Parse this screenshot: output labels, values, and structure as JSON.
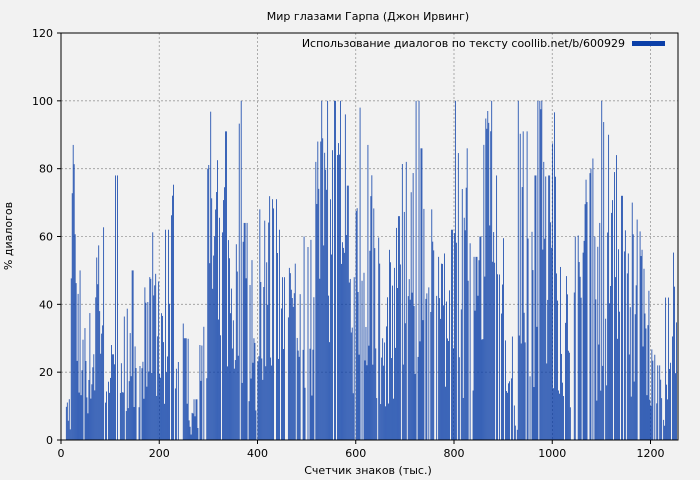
{
  "chart_data": {
    "type": "bar",
    "title": "Мир глазами Гарпа (Джон Ирвинг)",
    "xlabel": "Счетчик знаков (тыс.)",
    "ylabel": "% диалогов",
    "xlim": [
      0,
      1256
    ],
    "ylim": [
      0,
      120
    ],
    "x_ticks": [
      0,
      200,
      400,
      600,
      800,
      1000,
      1200
    ],
    "y_ticks": [
      0,
      20,
      40,
      60,
      80,
      100,
      120
    ],
    "grid": true,
    "legend_position": "top-right",
    "series": [
      {
        "name": "Использование диалогов по тексту coollib.net/b/600929",
        "color": "#0b3fa8",
        "bin_width": 2,
        "sampled_values": [
          [
            0,
            0
          ],
          [
            10,
            16
          ],
          [
            20,
            87
          ],
          [
            30,
            50
          ],
          [
            40,
            33
          ],
          [
            50,
            40
          ],
          [
            60,
            42
          ],
          [
            70,
            78
          ],
          [
            80,
            70
          ],
          [
            90,
            51
          ],
          [
            100,
            28
          ],
          [
            110,
            78
          ],
          [
            120,
            40
          ],
          [
            130,
            56
          ],
          [
            140,
            50
          ],
          [
            150,
            37
          ],
          [
            160,
            24
          ],
          [
            170,
            45
          ],
          [
            180,
            62
          ],
          [
            190,
            49
          ],
          [
            200,
            63
          ],
          [
            210,
            62
          ],
          [
            220,
            78
          ],
          [
            230,
            23
          ],
          [
            240,
            36
          ],
          [
            250,
            30
          ],
          [
            260,
            8
          ],
          [
            270,
            12
          ],
          [
            280,
            28
          ],
          [
            290,
            80
          ],
          [
            300,
            100
          ],
          [
            310,
            95
          ],
          [
            320,
            68
          ],
          [
            330,
            91
          ],
          [
            340,
            71
          ],
          [
            350,
            68
          ],
          [
            360,
            100
          ],
          [
            370,
            64
          ],
          [
            380,
            70
          ],
          [
            390,
            37
          ],
          [
            400,
            68
          ],
          [
            410,
            91
          ],
          [
            420,
            78
          ],
          [
            430,
            71
          ],
          [
            440,
            62
          ],
          [
            450,
            48
          ],
          [
            460,
            66
          ],
          [
            470,
            52
          ],
          [
            480,
            43
          ],
          [
            490,
            60
          ],
          [
            500,
            64
          ],
          [
            510,
            82
          ],
          [
            520,
            88
          ],
          [
            530,
            100
          ],
          [
            540,
            100
          ],
          [
            550,
            100
          ],
          [
            560,
            100
          ],
          [
            570,
            96
          ],
          [
            580,
            75
          ],
          [
            590,
            48
          ],
          [
            600,
            98
          ],
          [
            610,
            100
          ],
          [
            620,
            87
          ],
          [
            630,
            88
          ],
          [
            640,
            68
          ],
          [
            650,
            30
          ],
          [
            660,
            57
          ],
          [
            670,
            72
          ],
          [
            680,
            66
          ],
          [
            690,
            100
          ],
          [
            700,
            82
          ],
          [
            710,
            80
          ],
          [
            720,
            100
          ],
          [
            730,
            86
          ],
          [
            740,
            45
          ],
          [
            750,
            68
          ],
          [
            760,
            54
          ],
          [
            770,
            52
          ],
          [
            780,
            55
          ],
          [
            790,
            62
          ],
          [
            800,
            100
          ],
          [
            810,
            74
          ],
          [
            820,
            86
          ],
          [
            830,
            58
          ],
          [
            840,
            54
          ],
          [
            850,
            60
          ],
          [
            860,
            97
          ],
          [
            870,
            100
          ],
          [
            880,
            78
          ],
          [
            890,
            52
          ],
          [
            900,
            64
          ],
          [
            910,
            36
          ],
          [
            920,
            16
          ],
          [
            930,
            100
          ],
          [
            940,
            91
          ],
          [
            950,
            84
          ],
          [
            960,
            78
          ],
          [
            970,
            100
          ],
          [
            980,
            82
          ],
          [
            990,
            78
          ],
          [
            1000,
            100
          ],
          [
            1010,
            90
          ],
          [
            1020,
            55
          ],
          [
            1030,
            55
          ],
          [
            1040,
            60
          ],
          [
            1050,
            62
          ],
          [
            1060,
            100
          ],
          [
            1070,
            80
          ],
          [
            1080,
            83
          ],
          [
            1090,
            64
          ],
          [
            1100,
            100
          ],
          [
            1110,
            90
          ],
          [
            1120,
            79
          ],
          [
            1130,
            84
          ],
          [
            1140,
            72
          ],
          [
            1150,
            55
          ],
          [
            1160,
            70
          ],
          [
            1170,
            65
          ],
          [
            1180,
            64
          ],
          [
            1190,
            44
          ],
          [
            1200,
            30
          ],
          [
            1210,
            22
          ],
          [
            1220,
            18
          ],
          [
            1230,
            42
          ],
          [
            1240,
            60
          ],
          [
            1250,
            45
          ]
        ]
      }
    ]
  }
}
